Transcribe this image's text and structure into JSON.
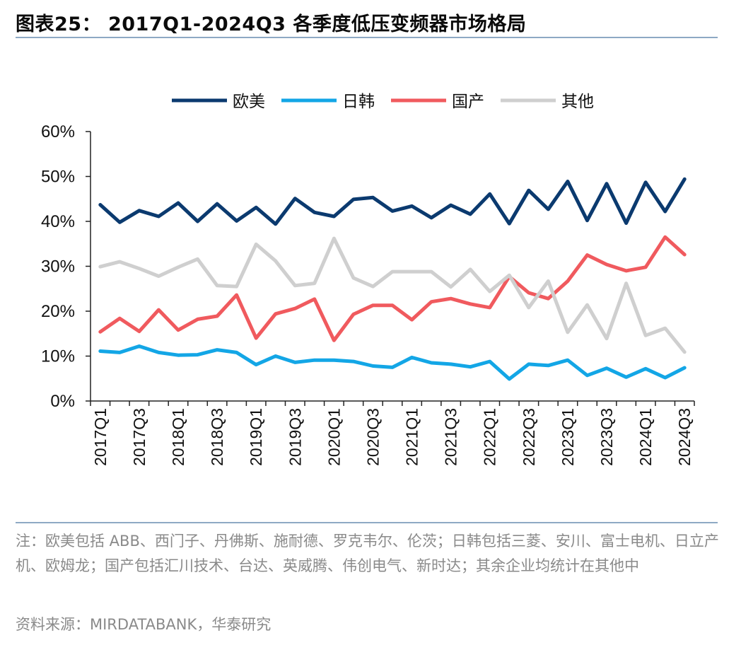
{
  "header": {
    "title": "图表25：  2017Q1-2024Q3 各季度低压变频器市场格局"
  },
  "footer": {
    "note": "注：欧美包括 ABB、西门子、丹佛斯、施耐德、罗克韦尔、伦茨；日韩包括三菱、安川、富士电机、日立产机、欧姆龙；国产包括汇川技术、台达、英威腾、伟创电气、新时达；其余企业均统计在其他中",
    "source": "资料来源：MIRDATABANK，华泰研究"
  },
  "chart_data": {
    "type": "line",
    "legend_position": "top",
    "ylim": [
      0,
      60
    ],
    "yticks": [
      "0%",
      "10%",
      "20%",
      "30%",
      "40%",
      "50%",
      "60%"
    ],
    "x": [
      "2017Q1",
      "2017Q2",
      "2017Q3",
      "2017Q4",
      "2018Q1",
      "2018Q2",
      "2018Q3",
      "2018Q4",
      "2019Q1",
      "2019Q2",
      "2019Q3",
      "2019Q4",
      "2020Q1",
      "2020Q2",
      "2020Q3",
      "2020Q4",
      "2021Q1",
      "2021Q2",
      "2021Q3",
      "2021Q4",
      "2022Q1",
      "2022Q2",
      "2022Q3",
      "2022Q4",
      "2023Q1",
      "2023Q2",
      "2023Q3",
      "2023Q4",
      "2024Q1",
      "2024Q2",
      "2024Q3"
    ],
    "xtick_labels": [
      "2017Q1",
      "2017Q3",
      "2018Q1",
      "2018Q3",
      "2019Q1",
      "2019Q3",
      "2020Q1",
      "2020Q3",
      "2021Q1",
      "2021Q3",
      "2022Q1",
      "2022Q3",
      "2023Q1",
      "2023Q3",
      "2024Q1",
      "2024Q3"
    ],
    "series": [
      {
        "name": "欧美",
        "color": "#0b3a6f",
        "values": [
          43.7,
          39.8,
          42.4,
          41.1,
          44.1,
          40.0,
          43.9,
          40.1,
          43.1,
          39.4,
          45.1,
          42.0,
          41.1,
          44.9,
          45.3,
          42.3,
          43.4,
          40.8,
          43.6,
          41.6,
          46.1,
          39.5,
          46.9,
          42.7,
          48.9,
          40.2,
          48.4,
          39.6,
          48.7,
          42.2,
          49.4
        ]
      },
      {
        "name": "日韩",
        "color": "#13a6e6",
        "values": [
          11.1,
          10.8,
          12.2,
          10.8,
          10.2,
          10.3,
          11.4,
          10.8,
          8.1,
          10.0,
          8.6,
          9.1,
          9.1,
          8.8,
          7.8,
          7.5,
          9.7,
          8.5,
          8.2,
          7.6,
          8.8,
          4.9,
          8.2,
          7.9,
          9.1,
          5.7,
          7.3,
          5.3,
          7.2,
          5.2,
          7.4
        ]
      },
      {
        "name": "国产",
        "color": "#f05a5e",
        "values": [
          15.4,
          18.4,
          15.5,
          20.3,
          15.8,
          18.2,
          18.9,
          23.6,
          14.0,
          19.4,
          20.6,
          22.7,
          13.5,
          19.3,
          21.3,
          21.3,
          18.1,
          22.1,
          22.8,
          21.6,
          20.8,
          27.7,
          24.1,
          22.8,
          26.7,
          32.5,
          30.4,
          29.0,
          29.8,
          36.5,
          32.6
        ]
      },
      {
        "name": "其他",
        "color": "#cfcfcf",
        "values": [
          29.9,
          31.0,
          29.5,
          27.8,
          29.8,
          31.6,
          25.7,
          25.5,
          34.9,
          31.2,
          25.7,
          26.2,
          36.2,
          27.4,
          25.5,
          28.8,
          28.8,
          28.8,
          25.4,
          29.3,
          24.4,
          28.0,
          20.8,
          26.7,
          15.3,
          21.4,
          13.9,
          26.2,
          14.6,
          16.2,
          10.9
        ]
      }
    ]
  }
}
